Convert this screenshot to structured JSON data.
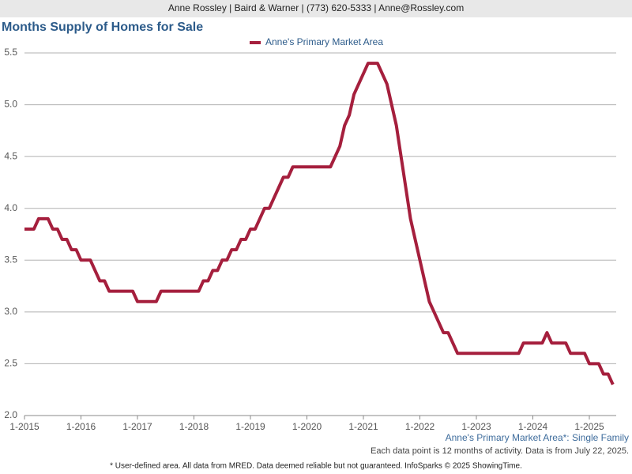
{
  "header": "Anne Rossley | Baird & Warner | (773) 620-5333 | Anne@Rossley.com",
  "chart_data": {
    "type": "line",
    "title": "Months Supply of Homes for Sale",
    "categories": [
      "1-2015",
      null,
      null,
      null,
      null,
      null,
      null,
      null,
      null,
      null,
      null,
      null,
      "1-2016",
      null,
      null,
      null,
      null,
      null,
      null,
      null,
      null,
      null,
      null,
      null,
      "1-2017",
      null,
      null,
      null,
      null,
      null,
      null,
      null,
      null,
      null,
      null,
      null,
      "1-2018",
      null,
      null,
      null,
      null,
      null,
      null,
      null,
      null,
      null,
      null,
      null,
      "1-2019",
      null,
      null,
      null,
      null,
      null,
      null,
      null,
      null,
      null,
      null,
      null,
      "1-2020",
      null,
      null,
      null,
      null,
      null,
      null,
      null,
      null,
      null,
      null,
      null,
      "1-2021",
      null,
      null,
      null,
      null,
      null,
      null,
      null,
      null,
      null,
      null,
      null,
      "1-2022",
      null,
      null,
      null,
      null,
      null,
      null,
      null,
      null,
      null,
      null,
      null,
      "1-2023",
      null,
      null,
      null,
      null,
      null,
      null,
      null,
      null,
      null,
      null,
      null,
      "1-2024",
      null,
      null,
      null,
      null,
      null,
      null,
      null,
      null,
      null,
      null,
      null,
      "1-2025",
      null,
      null,
      null,
      null,
      null
    ],
    "series": [
      {
        "name": "Anne's Primary Market Area",
        "color": "#a51f3d",
        "values": [
          3.8,
          3.8,
          3.8,
          3.9,
          3.9,
          3.9,
          3.8,
          3.8,
          3.7,
          3.7,
          3.6,
          3.6,
          3.5,
          3.5,
          3.5,
          3.4,
          3.3,
          3.3,
          3.2,
          3.2,
          3.2,
          3.2,
          3.2,
          3.2,
          3.1,
          3.1,
          3.1,
          3.1,
          3.1,
          3.2,
          3.2,
          3.2,
          3.2,
          3.2,
          3.2,
          3.2,
          3.2,
          3.2,
          3.3,
          3.3,
          3.4,
          3.4,
          3.5,
          3.5,
          3.6,
          3.6,
          3.7,
          3.7,
          3.8,
          3.8,
          3.9,
          4.0,
          4.0,
          4.1,
          4.2,
          4.3,
          4.3,
          4.4,
          4.4,
          4.4,
          4.4,
          4.4,
          4.4,
          4.4,
          4.4,
          4.4,
          4.5,
          4.6,
          4.8,
          4.9,
          5.1,
          5.2,
          5.3,
          5.4,
          5.4,
          5.4,
          5.3,
          5.2,
          5.0,
          4.8,
          4.5,
          4.2,
          3.9,
          3.7,
          3.5,
          3.3,
          3.1,
          3.0,
          2.9,
          2.8,
          2.8,
          2.7,
          2.6,
          2.6,
          2.6,
          2.6,
          2.6,
          2.6,
          2.6,
          2.6,
          2.6,
          2.6,
          2.6,
          2.6,
          2.6,
          2.6,
          2.7,
          2.7,
          2.7,
          2.7,
          2.7,
          2.8,
          2.7,
          2.7,
          2.7,
          2.7,
          2.6,
          2.6,
          2.6,
          2.6,
          2.5,
          2.5,
          2.5,
          2.4,
          2.4,
          2.3
        ]
      }
    ],
    "ylim": [
      2,
      5.5
    ],
    "yticks": [
      {
        "value": 2,
        "label": "2.0"
      },
      2.5,
      {
        "value": 3,
        "label": "3.0"
      },
      3.5,
      {
        "value": 4,
        "label": "4.0"
      },
      4.5,
      {
        "value": 5,
        "label": "5.0"
      },
      5.5
    ],
    "grid": true,
    "legend": "top",
    "notes": [
      "Anne's Primary Market Area*: Single Family",
      "Each data point is 12 months of activity. Data is from July 22, 2025."
    ]
  },
  "footer": "* User-defined area. All data from MRED. Data deemed reliable but not guaranteed. InfoSparks © 2025 ShowingTime."
}
